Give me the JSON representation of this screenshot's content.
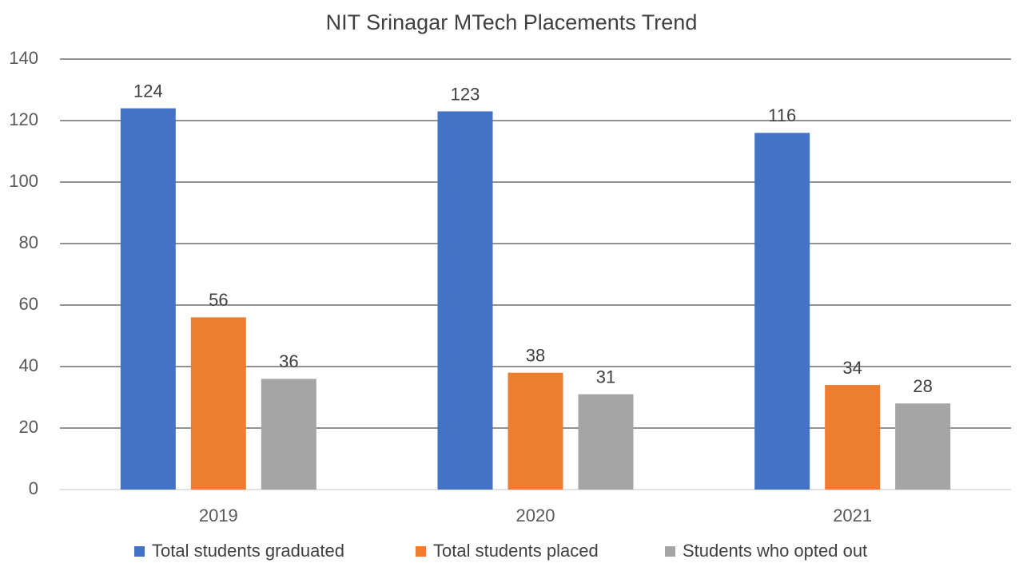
{
  "chart_data": {
    "type": "bar",
    "title": "NIT Srinagar MTech Placements Trend",
    "categories": [
      "2019",
      "2020",
      "2021"
    ],
    "series": [
      {
        "name": "Total students graduated",
        "color": "#4472c4",
        "values": [
          124,
          123,
          116
        ]
      },
      {
        "name": "Total students placed",
        "color": "#ed7d31",
        "values": [
          56,
          38,
          34
        ]
      },
      {
        "name": "Students who opted out",
        "color": "#a5a5a5",
        "values": [
          36,
          31,
          28
        ]
      }
    ],
    "ylim": [
      0,
      140
    ],
    "yticks": [
      0,
      20,
      40,
      60,
      80,
      100,
      120,
      140
    ],
    "grid": true,
    "legend": "bottom",
    "data_labels": true
  }
}
